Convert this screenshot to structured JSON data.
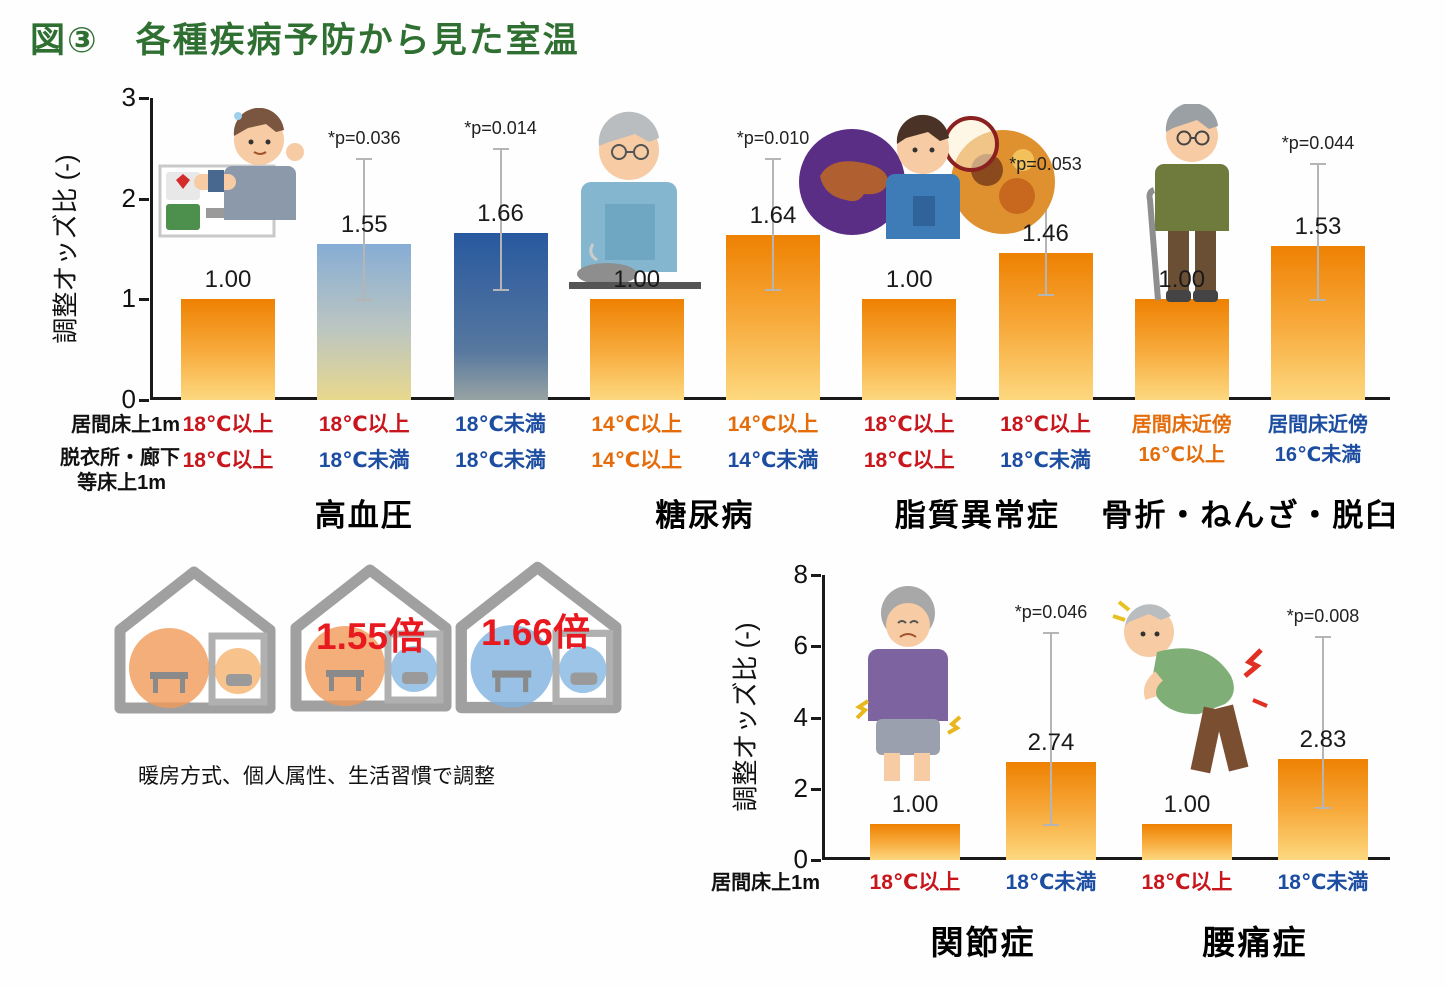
{
  "title": "図③　各種疾病予防から見た室温",
  "houses": {
    "house2_label": "1.55倍",
    "house3_label": "1.66倍",
    "caption": "暖房方式、個人属性、生活習慣で調整"
  },
  "colors": {
    "title_green": "#2f7032",
    "hot18_red": "#c8161d",
    "warm14_orange": "#e46c0a",
    "cold_blue": "#1c4da1",
    "bar_warm_top": "#ee8102",
    "bar_warm_bottom": "#fdd87f",
    "bar_cool_top": "#28599f",
    "multiplier_red": "#e8191f"
  },
  "chart_data": [
    {
      "type": "bar",
      "id": "disease",
      "ylabel": "調整オッズ比 (-)",
      "ylim": [
        0,
        3
      ],
      "yticks": [
        3,
        2,
        1,
        0
      ],
      "row_headers": [
        "居間床上1m",
        "脱衣所・廊下",
        "等床上1m"
      ],
      "bars": [
        {
          "value": 1.0,
          "label": "1.00",
          "color": "warm",
          "cond1": "18℃以上",
          "cond1_type": "hot18",
          "cond2": "18℃以上",
          "cond2_type": "hot18"
        },
        {
          "value": 1.55,
          "label": "1.55",
          "color": "coolLight",
          "cond1": "18℃以上",
          "cond1_type": "hot18",
          "cond2": "18℃未満",
          "cond2_type": "cold",
          "p": "*p=0.036",
          "err": [
            1.0,
            2.4
          ]
        },
        {
          "value": 1.66,
          "label": "1.66",
          "color": "cool",
          "cond1": "18℃未満",
          "cond1_type": "cold",
          "cond2": "18℃未満",
          "cond2_type": "cold",
          "p": "*p=0.014",
          "err": [
            1.1,
            2.5
          ]
        },
        {
          "value": 1.0,
          "label": "1.00",
          "color": "warm",
          "cond1": "14℃以上",
          "cond1_type": "warm14",
          "cond2": "14℃以上",
          "cond2_type": "warm14"
        },
        {
          "value": 1.64,
          "label": "1.64",
          "color": "warm",
          "cond1": "14℃以上",
          "cond1_type": "warm14",
          "cond2": "14℃未満",
          "cond2_type": "cold",
          "p": "*p=0.010",
          "err": [
            1.1,
            2.4
          ]
        },
        {
          "value": 1.0,
          "label": "1.00",
          "color": "warm",
          "cond1": "18℃以上",
          "cond1_type": "hot18",
          "cond2": "18℃以上",
          "cond2_type": "hot18"
        },
        {
          "value": 1.46,
          "label": "1.46",
          "color": "warm",
          "cond1": "18℃以上",
          "cond1_type": "hot18",
          "cond2": "18℃未満",
          "cond2_type": "cold",
          "p": "*p=0.053",
          "err": [
            1.05,
            2.15
          ]
        },
        {
          "value": 1.0,
          "label": "1.00",
          "color": "warm",
          "cond_lines": [
            "居間床近傍",
            "16℃以上"
          ],
          "cond_lines_type": "warm14"
        },
        {
          "value": 1.53,
          "label": "1.53",
          "color": "warm",
          "cond_lines": [
            "居間床近傍",
            "16℃未満"
          ],
          "cond_lines_type": "cold",
          "p": "*p=0.044",
          "err": [
            1.0,
            2.35
          ]
        }
      ],
      "groups": [
        {
          "label": "高血圧",
          "span": [
            0,
            2
          ]
        },
        {
          "label": "糖尿病",
          "span": [
            3,
            4
          ]
        },
        {
          "label": "脂質異常症",
          "span": [
            5,
            6
          ]
        },
        {
          "label": "骨折・ねんざ・脱臼",
          "span": [
            7,
            8
          ]
        }
      ]
    },
    {
      "type": "bar",
      "id": "pain",
      "ylabel": "調整オッズ比 (-)",
      "ylim": [
        0,
        8
      ],
      "yticks": [
        8,
        6,
        4,
        2,
        0
      ],
      "row_headers": [
        "居間床上1m"
      ],
      "bars": [
        {
          "value": 1.0,
          "label": "1.00",
          "color": "warm",
          "cond1": "18℃以上",
          "cond1_type": "hot18"
        },
        {
          "value": 2.74,
          "label": "2.74",
          "color": "warm",
          "cond1": "18℃未満",
          "cond1_type": "cold",
          "p": "*p=0.046",
          "err": [
            1.0,
            6.4
          ]
        },
        {
          "value": 1.0,
          "label": "1.00",
          "color": "warm",
          "cond1": "18℃以上",
          "cond1_type": "hot18"
        },
        {
          "value": 2.83,
          "label": "2.83",
          "color": "warm",
          "cond1": "18℃未満",
          "cond1_type": "cold",
          "p": "*p=0.008",
          "err": [
            1.5,
            6.3
          ]
        }
      ],
      "groups": [
        {
          "label": "関節症",
          "span": [
            0,
            1
          ]
        },
        {
          "label": "腰痛症",
          "span": [
            2,
            3
          ]
        }
      ]
    }
  ]
}
